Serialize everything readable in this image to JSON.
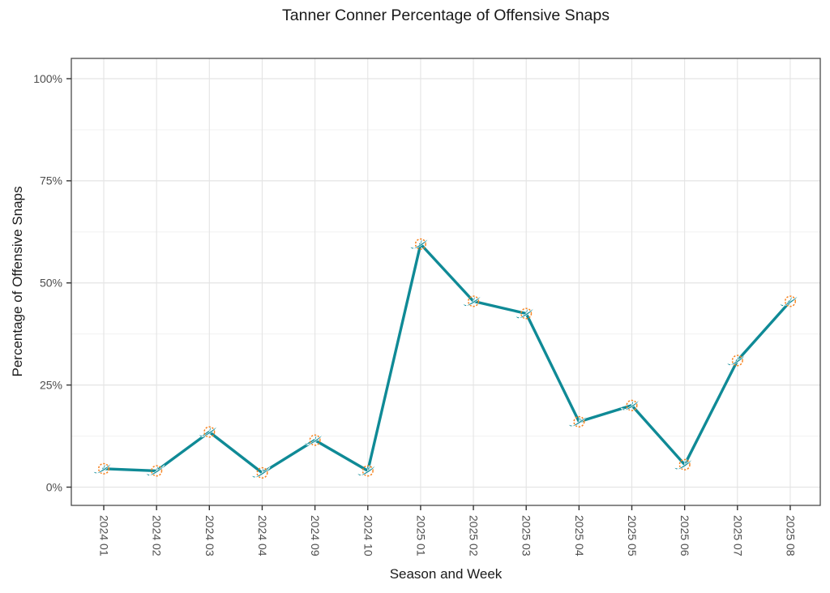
{
  "page": {
    "background": "#ffffff"
  },
  "chart_data": {
    "type": "line",
    "title": "Tanner Conner Percentage of Offensive Snaps",
    "xlabel": "Season and Week",
    "ylabel": "Percentage of Offensive Snaps",
    "categories": [
      "2024 01",
      "2024 02",
      "2024 03",
      "2024 04",
      "2024 09",
      "2024 10",
      "2025 01",
      "2025 02",
      "2025 03",
      "2025 04",
      "2025 05",
      "2025 06",
      "2025 07",
      "2025 08"
    ],
    "series": [
      {
        "name": "Tanner Conner",
        "values": [
          4.5,
          4,
          13.5,
          3.5,
          11.5,
          4,
          59.5,
          45.5,
          42.5,
          16,
          20,
          5.5,
          31,
          45.5
        ]
      }
    ],
    "unit": "%",
    "ylim": [
      0,
      100
    ],
    "y_ticks": {
      "major": [
        0,
        25,
        50,
        75,
        100
      ],
      "labels": [
        "0%",
        "25%",
        "50%",
        "75%",
        "100%"
      ],
      "minor": [
        12.5,
        37.5,
        62.5,
        87.5
      ]
    },
    "grid": "horizontal major+minor, vertical major per category, panel border",
    "legend": "none",
    "marker": "miami-dolphins-logo",
    "colors": {
      "line": "#0f8a96",
      "marker_ring": "#f6821f",
      "marker_body": "#0f8a96",
      "grid_major": "#e4e4e4",
      "grid_minor": "#f1f1f1",
      "panel_border": "#4a4a4a",
      "tick_mark": "#333333",
      "tick_text": "#4d4d4d",
      "title_text": "#1a1a1a"
    }
  }
}
